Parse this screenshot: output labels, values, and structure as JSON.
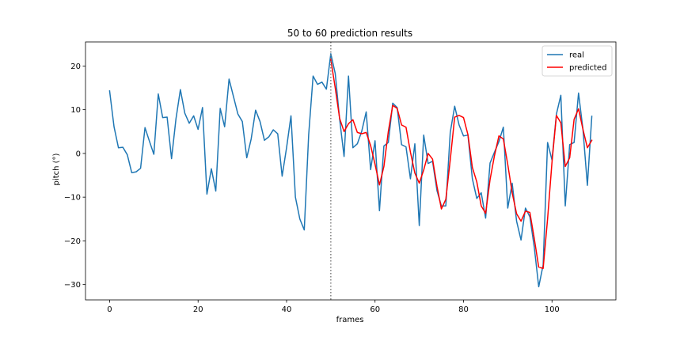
{
  "chart_data": {
    "type": "line",
    "title": "50 to 60 prediction results",
    "xlabel": "frames",
    "ylabel": "pitch (°)",
    "xlim": [
      -5.45,
      114.45
    ],
    "ylim": [
      -33.5,
      25.5
    ],
    "xticks": [
      0,
      20,
      40,
      60,
      80,
      100
    ],
    "yticks": [
      -30,
      -20,
      -10,
      0,
      10,
      20
    ],
    "grid": false,
    "legend_position": "top-right",
    "vline": {
      "x": 50,
      "style": "dotted",
      "color": "#808080"
    },
    "series": [
      {
        "name": "real",
        "color": "#1f77b4",
        "x_start": 0,
        "values": [
          14.3,
          6.1,
          1.3,
          1.4,
          -0.3,
          -4.4,
          -4.2,
          -3.4,
          5.9,
          2.8,
          -0.2,
          13.6,
          8.2,
          8.3,
          -1.2,
          7.9,
          14.6,
          9.2,
          6.9,
          8.6,
          5.5,
          10.5,
          -9.3,
          -3.5,
          -8.6,
          10.3,
          6.1,
          17.0,
          13.0,
          9.0,
          7.3,
          -1.0,
          3.3,
          9.9,
          7.3,
          3.0,
          3.8,
          5.4,
          4.5,
          -5.2,
          1.3,
          8.6,
          -10.0,
          -15.0,
          -17.5,
          4.3,
          17.7,
          15.8,
          16.3,
          14.7,
          22.8,
          18.3,
          7.8,
          -0.7,
          17.7,
          1.3,
          2.2,
          5.1,
          9.5,
          -3.7,
          2.9,
          -13.1,
          1.7,
          2.5,
          11.5,
          10.5,
          2.0,
          1.5,
          -5.8,
          2.2,
          -16.5,
          4.2,
          -2.3,
          -1.8,
          -8.5,
          -12.0,
          -12.0,
          4.8,
          10.8,
          6.5,
          4.0,
          4.2,
          -5.8,
          -10.3,
          -9.0,
          -14.8,
          -2.2,
          0.3,
          2.7,
          6.0,
          -12.5,
          -6.8,
          -15.5,
          -19.8,
          -12.5,
          -14.5,
          -21.5,
          -30.5,
          -25.5,
          2.5,
          -1.5,
          9.0,
          13.3,
          -12.0,
          2.0,
          2.5,
          13.8,
          5.5,
          -7.3,
          8.5
        ]
      },
      {
        "name": "predicted",
        "color": "#ff0000",
        "x_start": 50,
        "values": [
          21.5,
          15.0,
          8.0,
          5.0,
          6.8,
          7.7,
          4.8,
          4.5,
          4.8,
          1.8,
          -2.5,
          -7.2,
          -3.0,
          5.0,
          11.0,
          10.3,
          6.5,
          6.0,
          0.3,
          -4.5,
          -6.8,
          -3.8,
          0.0,
          -1.3,
          -7.5,
          -12.7,
          -10.5,
          -1.5,
          8.3,
          8.7,
          8.2,
          4.3,
          -3.2,
          -6.5,
          -12.0,
          -13.7,
          -6.0,
          -0.5,
          4.0,
          3.3,
          -2.5,
          -9.0,
          -13.8,
          -15.5,
          -13.2,
          -13.5,
          -19.5,
          -26.0,
          -26.3,
          -15.0,
          -2.0,
          8.7,
          7.0,
          -3.0,
          -1.0,
          7.8,
          10.2,
          5.5,
          1.3,
          3.0
        ]
      }
    ]
  }
}
